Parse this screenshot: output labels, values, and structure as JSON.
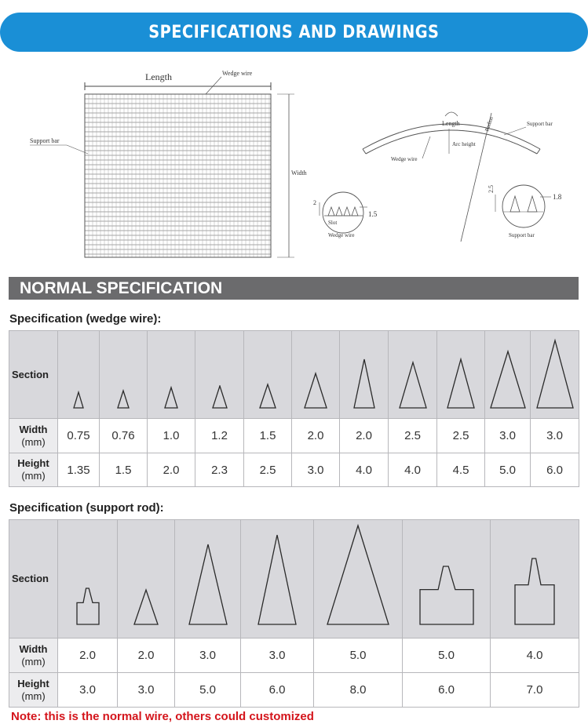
{
  "banner": {
    "title": "SPECIFICATIONS AND DRAWINGS"
  },
  "drawing": {
    "length_label": "Length",
    "wedge_wire_label": "Wedge wire",
    "support_bar_label": "Support bar",
    "width_label": "Width",
    "slot_label": "Slot",
    "dim_2": "2",
    "dim_1_5": "1.5",
    "arc_length_label": "Length",
    "radius_label": "Radius",
    "arc_height_label": "Arc height",
    "arc_support_bar_label": "Support bar",
    "arc_wedge_wire_label": "Wedge wire",
    "dim_2_5": "2.5",
    "dim_1_8": "1.8",
    "detail_support_bar_label": "Support bar"
  },
  "normal_spec": {
    "title": "NORMAL SPECIFICATION"
  },
  "wedge_table": {
    "heading": "Specification (wedge wire):",
    "section_label": "Section",
    "width_label": "Width",
    "height_label": "Height",
    "unit": "(mm)",
    "width": [
      "0.75",
      "0.76",
      "1.0",
      "1.2",
      "1.5",
      "2.0",
      "2.0",
      "2.5",
      "2.5",
      "3.0",
      "3.0"
    ],
    "height": [
      "1.35",
      "1.5",
      "2.0",
      "2.3",
      "2.5",
      "3.0",
      "4.0",
      "4.0",
      "4.5",
      "5.0",
      "6.0"
    ]
  },
  "rod_table": {
    "heading": "Specification (support rod):",
    "section_label": "Section",
    "width_label": "Width",
    "height_label": "Height",
    "unit": "(mm)",
    "width": [
      "2.0",
      "2.0",
      "3.0",
      "3.0",
      "5.0",
      "5.0",
      "4.0"
    ],
    "height": [
      "3.0",
      "3.0",
      "5.0",
      "6.0",
      "8.0",
      "6.0",
      "7.0"
    ],
    "shapes": [
      "notched-rect",
      "triangle",
      "triangle",
      "triangle",
      "triangle",
      "notched-rect",
      "notched-rect"
    ]
  },
  "note": {
    "text": "Note: this is the normal wire, others could customized"
  }
}
